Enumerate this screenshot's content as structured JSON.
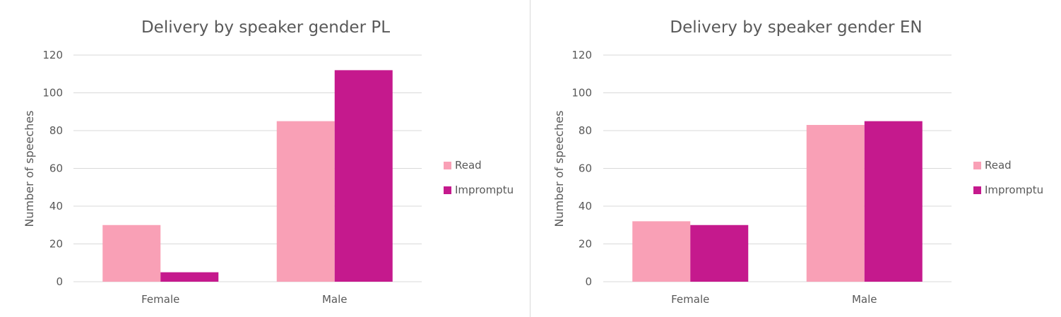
{
  "chart_data": [
    {
      "type": "bar",
      "title": "Delivery by speaker gender PL",
      "xlabel": "",
      "ylabel": "Number of speeches",
      "categories": [
        "Female",
        "Male"
      ],
      "series": [
        {
          "name": "Read",
          "color": "#f9a0b6",
          "values": [
            30,
            85
          ]
        },
        {
          "name": "Impromptu",
          "color": "#c5198d",
          "values": [
            5,
            112
          ]
        }
      ],
      "ylim": [
        0,
        120
      ],
      "yticks": [
        0,
        20,
        40,
        60,
        80,
        100,
        120
      ],
      "grid": true,
      "legend": "right"
    },
    {
      "type": "bar",
      "title": "Delivery by speaker gender EN",
      "xlabel": "",
      "ylabel": "Number of speeches",
      "categories": [
        "Female",
        "Male"
      ],
      "series": [
        {
          "name": "Read",
          "color": "#f9a0b6",
          "values": [
            32,
            83
          ]
        },
        {
          "name": "Impromptu",
          "color": "#c5198d",
          "values": [
            30,
            85
          ]
        }
      ],
      "ylim": [
        0,
        120
      ],
      "yticks": [
        0,
        20,
        40,
        60,
        80,
        100,
        120
      ],
      "grid": true,
      "legend": "right"
    }
  ]
}
